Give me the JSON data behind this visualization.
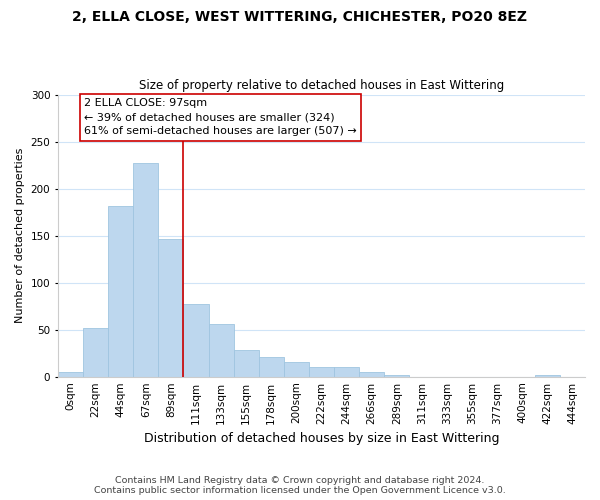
{
  "title": "2, ELLA CLOSE, WEST WITTERING, CHICHESTER, PO20 8EZ",
  "subtitle": "Size of property relative to detached houses in East Wittering",
  "xlabel": "Distribution of detached houses by size in East Wittering",
  "ylabel": "Number of detached properties",
  "bar_labels": [
    "0sqm",
    "22sqm",
    "44sqm",
    "67sqm",
    "89sqm",
    "111sqm",
    "133sqm",
    "155sqm",
    "178sqm",
    "200sqm",
    "222sqm",
    "244sqm",
    "266sqm",
    "289sqm",
    "311sqm",
    "333sqm",
    "355sqm",
    "377sqm",
    "400sqm",
    "422sqm",
    "444sqm"
  ],
  "bar_values": [
    5,
    52,
    181,
    227,
    146,
    77,
    56,
    28,
    21,
    16,
    10,
    10,
    5,
    2,
    0,
    0,
    0,
    0,
    0,
    2,
    0
  ],
  "bar_color": "#bdd7ee",
  "bar_edge_color": "#9fc5e0",
  "vline_x": 4.5,
  "vline_color": "#cc0000",
  "annotation_text": "2 ELLA CLOSE: 97sqm\n← 39% of detached houses are smaller (324)\n61% of semi-detached houses are larger (507) →",
  "annotation_box_color": "white",
  "annotation_box_edge_color": "#cc0000",
  "ylim": [
    0,
    300
  ],
  "yticks": [
    0,
    50,
    100,
    150,
    200,
    250,
    300
  ],
  "footer_text": "Contains HM Land Registry data © Crown copyright and database right 2024.\nContains public sector information licensed under the Open Government Licence v3.0.",
  "title_fontsize": 10,
  "subtitle_fontsize": 8.5,
  "xlabel_fontsize": 9,
  "ylabel_fontsize": 8,
  "tick_fontsize": 7.5,
  "annotation_fontsize": 8,
  "footer_fontsize": 6.8,
  "grid_color": "#d0e4f7",
  "background_color": "#ffffff"
}
